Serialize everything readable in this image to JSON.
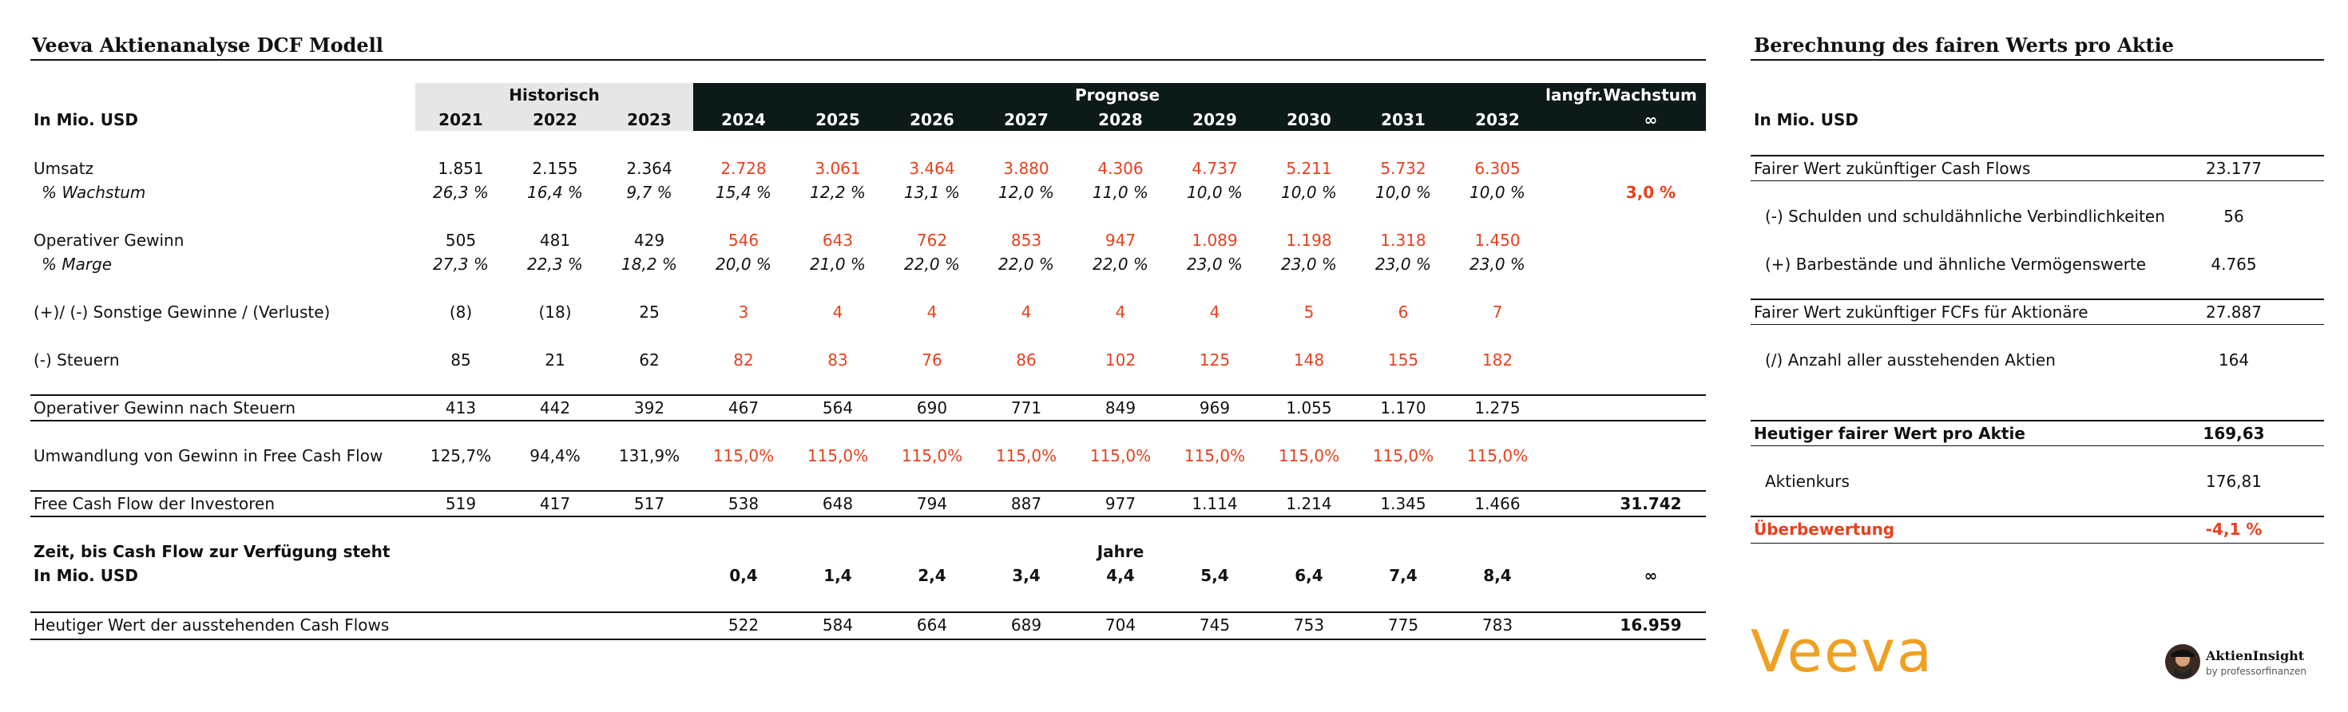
{
  "left_title": "Veeva Aktienanalyse DCF Modell",
  "right_title": "Berechnung des fairen Werts pro Aktie",
  "unit_label": "In Mio. USD",
  "group_historisch": "Historisch",
  "group_prognose": "Prognose",
  "group_langfr": "langfr.Wachstum",
  "years_hist": [
    "2021",
    "2022",
    "2023"
  ],
  "years_prog": [
    "2024",
    "2025",
    "2026",
    "2027",
    "2028",
    "2029",
    "2030",
    "2031",
    "2032"
  ],
  "infinity": "∞",
  "rows": {
    "umsatz": {
      "label": "Umsatz",
      "hist": [
        "1.851",
        "2.155",
        "2.364"
      ],
      "prog": [
        "2.728",
        "3.061",
        "3.464",
        "3.880",
        "4.306",
        "4.737",
        "5.211",
        "5.732",
        "6.305"
      ]
    },
    "wachstum": {
      "label": "% Wachstum",
      "hist": [
        "26,3 %",
        "16,4 %",
        "9,7 %"
      ],
      "prog": [
        "15,4 %",
        "12,2 %",
        "13,1 %",
        "12,0 %",
        "11,0 %",
        "10,0 %",
        "10,0 %",
        "10,0 %",
        "10,0 %"
      ],
      "langfr": "3,0 %"
    },
    "op_gewinn": {
      "label": "Operativer Gewinn",
      "hist": [
        "505",
        "481",
        "429"
      ],
      "prog": [
        "546",
        "643",
        "762",
        "853",
        "947",
        "1.089",
        "1.198",
        "1.318",
        "1.450"
      ]
    },
    "marge": {
      "label": "% Marge",
      "hist": [
        "27,3 %",
        "22,3 %",
        "18,2 %"
      ],
      "prog": [
        "20,0 %",
        "21,0 %",
        "22,0 %",
        "22,0 %",
        "22,0 %",
        "23,0 %",
        "23,0 %",
        "23,0 %",
        "23,0 %"
      ]
    },
    "sonstige": {
      "label": "(+)/ (-) Sonstige Gewinne / (Verluste)",
      "hist": [
        "(8)",
        "(18)",
        "25"
      ],
      "prog": [
        "3",
        "4",
        "4",
        "4",
        "4",
        "4",
        "5",
        "6",
        "7"
      ]
    },
    "steuern": {
      "label": "(-) Steuern",
      "hist": [
        "85",
        "21",
        "62"
      ],
      "prog": [
        "82",
        "83",
        "76",
        "86",
        "102",
        "125",
        "148",
        "155",
        "182"
      ]
    },
    "nopat": {
      "label": "Operativer Gewinn nach Steuern",
      "hist": [
        "413",
        "442",
        "392"
      ],
      "prog": [
        "467",
        "564",
        "690",
        "771",
        "849",
        "969",
        "1.055",
        "1.170",
        "1.275"
      ]
    },
    "umwandlung": {
      "label": "Umwandlung von Gewinn in Free Cash Flow",
      "hist": [
        "125,7%",
        "94,4%",
        "131,9%"
      ],
      "prog": [
        "115,0%",
        "115,0%",
        "115,0%",
        "115,0%",
        "115,0%",
        "115,0%",
        "115,0%",
        "115,0%",
        "115,0%"
      ]
    },
    "fcf": {
      "label": "Free Cash Flow der Investoren",
      "hist": [
        "519",
        "417",
        "517"
      ],
      "prog": [
        "538",
        "648",
        "794",
        "887",
        "977",
        "1.114",
        "1.214",
        "1.345",
        "1.466"
      ],
      "langfr": "31.742"
    },
    "zeit": {
      "label": "Zeit, bis Cash Flow zur Verfügung steht",
      "unit": "In Mio. USD",
      "header": "Jahre",
      "prog": [
        "0,4",
        "1,4",
        "2,4",
        "3,4",
        "4,4",
        "5,4",
        "6,4",
        "7,4",
        "8,4"
      ],
      "langfr": "∞"
    },
    "heutiger": {
      "label": "Heutiger Wert der ausstehenden Cash Flows",
      "prog": [
        "522",
        "584",
        "664",
        "689",
        "704",
        "745",
        "753",
        "775",
        "783"
      ],
      "langfr": "16.959"
    }
  },
  "right": {
    "unit_label": "In Mio. USD",
    "rows": [
      {
        "label": "Fairer Wert zukünftiger Cash Flows",
        "value": "23.177"
      },
      {
        "label": "(-) Schulden und schuldähnliche Verbindlichkeiten",
        "value": "56"
      },
      {
        "label": "(+) Barbestände und ähnliche Vermögenswerte",
        "value": "4.765"
      },
      {
        "label": "Fairer Wert zukünftiger FCFs für Aktionäre",
        "value": "27.887"
      },
      {
        "label": "(/) Anzahl aller ausstehenden Aktien",
        "value": "164"
      },
      {
        "label": "Heutiger fairer Wert pro Aktie",
        "value": "169,63"
      },
      {
        "label": "Aktienkurs",
        "value": "176,81"
      },
      {
        "label": "Überbewertung",
        "value": "-4,1 %"
      }
    ]
  },
  "brand_logo": "Veeva",
  "credit_name": "AktienInsight",
  "credit_sub": "by professorfinanzen",
  "colors": {
    "accent_red": "#e8401c",
    "header_dark": "#0c1a19",
    "hist_grey": "#e6e6e6",
    "veeva_orange": "#f0a020"
  }
}
